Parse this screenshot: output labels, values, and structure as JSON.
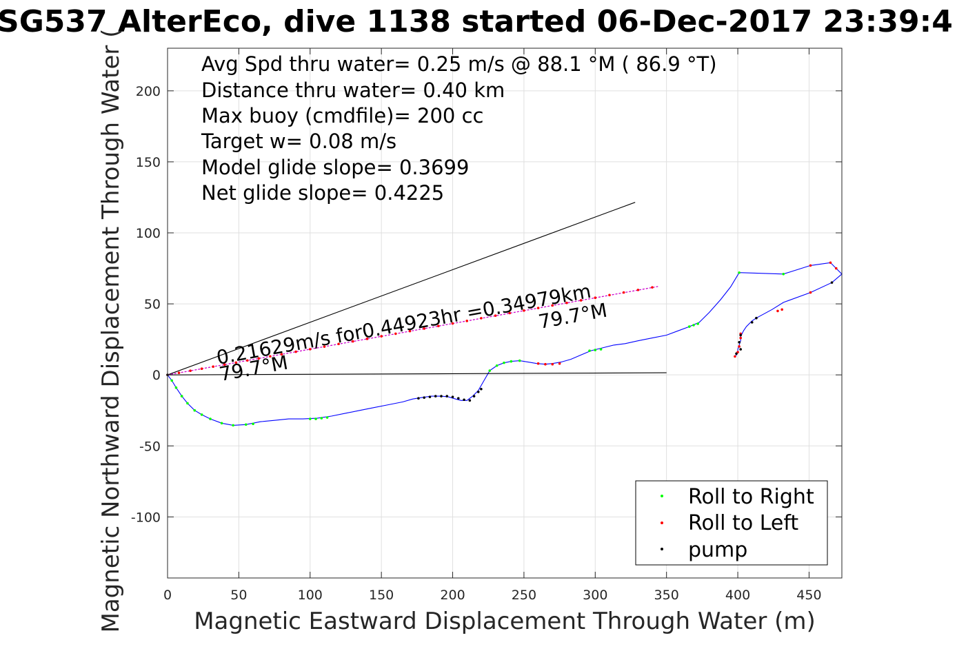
{
  "chart_data": {
    "type": "line",
    "title": "SG537 AlterEco, dive 1138 started 06-Dec-2017 23:39:4",
    "xlabel": "Magnetic Eastward Displacement Through Water (m)",
    "ylabel": "Magnetic Northward Displacement Through Water (",
    "xlim": [
      0,
      473
    ],
    "ylim": [
      -143,
      230
    ],
    "xticks": [
      0,
      50,
      100,
      150,
      200,
      250,
      300,
      350,
      400,
      450
    ],
    "yticks": [
      -100,
      -50,
      0,
      50,
      100,
      150,
      200
    ],
    "xtick_labels": [
      "0",
      "50",
      "100",
      "150",
      "200",
      "250",
      "300",
      "350",
      "400",
      "450"
    ],
    "ytick_labels": [
      "-100",
      "-50",
      "0",
      "50",
      "100",
      "150",
      "200"
    ],
    "grid": true,
    "legend_position": "bottom-right",
    "info_lines": [
      "Avg Spd thru water=  0.25 m/s @  88.1 °M ( 86.9 °T)",
      "Distance thru water=  0.40 km",
      "Max buoy (cmdfile)= 200 cc",
      "Target w= 0.08 m/s",
      "Model glide slope= 0.3699",
      "Net glide slope= 0.4225"
    ],
    "annotations": {
      "speed_label": "0.21629m/s for0.44923hr =0.34979km",
      "heading_label": "79.7°M"
    },
    "series": [
      {
        "name": "",
        "kind": "line",
        "color": "#0000ff",
        "x": [
          0,
          3,
          6,
          10,
          14,
          19,
          24,
          30,
          38,
          46,
          55,
          65,
          75,
          85,
          95,
          105,
          115,
          125,
          135,
          145,
          155,
          165,
          172,
          178,
          185,
          192,
          197,
          202,
          206,
          210,
          214,
          218,
          222,
          226,
          231,
          236,
          241,
          247,
          253,
          259,
          265,
          270,
          276,
          283,
          290,
          297,
          305,
          313,
          321,
          330,
          340,
          350,
          358,
          366,
          373,
          380,
          388,
          395,
          401,
          432,
          451,
          465,
          469,
          473,
          466,
          451,
          432,
          424,
          413,
          410,
          406,
          404,
          403,
          402,
          402,
          401,
          400,
          400,
          399,
          398
        ],
        "y": [
          0,
          -4,
          -9,
          -15,
          -20,
          -25,
          -28,
          -31,
          -34,
          -35.5,
          -35,
          -33,
          -32,
          -31,
          -31,
          -30.5,
          -29,
          -27,
          -25,
          -23,
          -21,
          -19,
          -17,
          -16,
          -15,
          -15,
          -15.5,
          -17,
          -18,
          -18,
          -15,
          -11,
          -4,
          3,
          6.5,
          8.5,
          9.5,
          10,
          9,
          8,
          7.5,
          8,
          9,
          11,
          14,
          17,
          19,
          21,
          22,
          24,
          26,
          28,
          31,
          34,
          37,
          44,
          53,
          62,
          72,
          71,
          77,
          79,
          75,
          71,
          65,
          58,
          51,
          46,
          40,
          38,
          34,
          31,
          29,
          27,
          24,
          21,
          18,
          16,
          14,
          13
        ]
      },
      {
        "name": "Roll to Right",
        "kind": "markers",
        "color": "#00ff00",
        "x": [
          3,
          6,
          10,
          14,
          19,
          24,
          30,
          38,
          46,
          55,
          60,
          100,
          104,
          108,
          112,
          226,
          231,
          236,
          241,
          247,
          296,
          300,
          304,
          366,
          369,
          372,
          401,
          432
        ],
        "y": [
          -4,
          -9,
          -15,
          -20,
          -25,
          -28,
          -31,
          -34,
          -35.5,
          -35,
          -34.5,
          -31,
          -31,
          -30.5,
          -30,
          3,
          6.5,
          8.5,
          9.5,
          10,
          17,
          17.5,
          18,
          34,
          35,
          36,
          72,
          71
        ]
      },
      {
        "name": "Roll to Left",
        "kind": "markers",
        "color": "#ff0000",
        "x": [
          0,
          8,
          16,
          24,
          32,
          40,
          48,
          56,
          64,
          72,
          80,
          90,
          100,
          110,
          120,
          130,
          140,
          150,
          160,
          170,
          180,
          190,
          200,
          210,
          220,
          230,
          240,
          250,
          260,
          270,
          280,
          290,
          300,
          310,
          320,
          330,
          340,
          260,
          265,
          270,
          275,
          451,
          465,
          469,
          451,
          428,
          431,
          402,
          402,
          401,
          400,
          398
        ],
        "y": [
          0,
          1.45,
          2.9,
          4.35,
          5.8,
          7.25,
          8.7,
          10.15,
          11.6,
          13.05,
          14.5,
          16.3,
          18.1,
          19.9,
          21.8,
          23.6,
          25.4,
          27.2,
          29.0,
          30.8,
          32.6,
          34.4,
          36.2,
          38.0,
          39.9,
          41.7,
          43.5,
          45.3,
          47.1,
          48.9,
          50.7,
          52.5,
          54.3,
          56.2,
          58.0,
          59.8,
          61.6,
          8,
          7.5,
          7.5,
          8,
          77,
          79,
          75,
          58,
          45,
          46,
          29,
          26,
          20,
          16,
          13
        ]
      },
      {
        "name": "pump",
        "kind": "markers",
        "color": "#000000",
        "x": [
          176,
          180,
          184,
          188,
          192,
          196,
          200,
          204,
          208,
          212,
          215,
          218,
          220,
          466,
          410,
          413,
          402,
          401,
          399,
          402,
          0
        ],
        "y": [
          -16.5,
          -16,
          -15.5,
          -15,
          -15,
          -15,
          -15.5,
          -16.5,
          -17.5,
          -18,
          -15,
          -12,
          -10,
          65,
          37,
          40,
          28,
          23,
          15,
          18,
          0
        ]
      },
      {
        "name": "",
        "kind": "line",
        "color": "#000000",
        "x": [
          0,
          328
        ],
        "y": [
          0,
          121.5
        ]
      },
      {
        "name": "",
        "kind": "line",
        "color": "#000000",
        "x": [
          0,
          350
        ],
        "y": [
          0,
          1.5
        ]
      },
      {
        "name": "",
        "kind": "line",
        "color": "#cc00cc",
        "x": [
          0,
          344
        ],
        "y": [
          0,
          62.2
        ]
      }
    ]
  }
}
